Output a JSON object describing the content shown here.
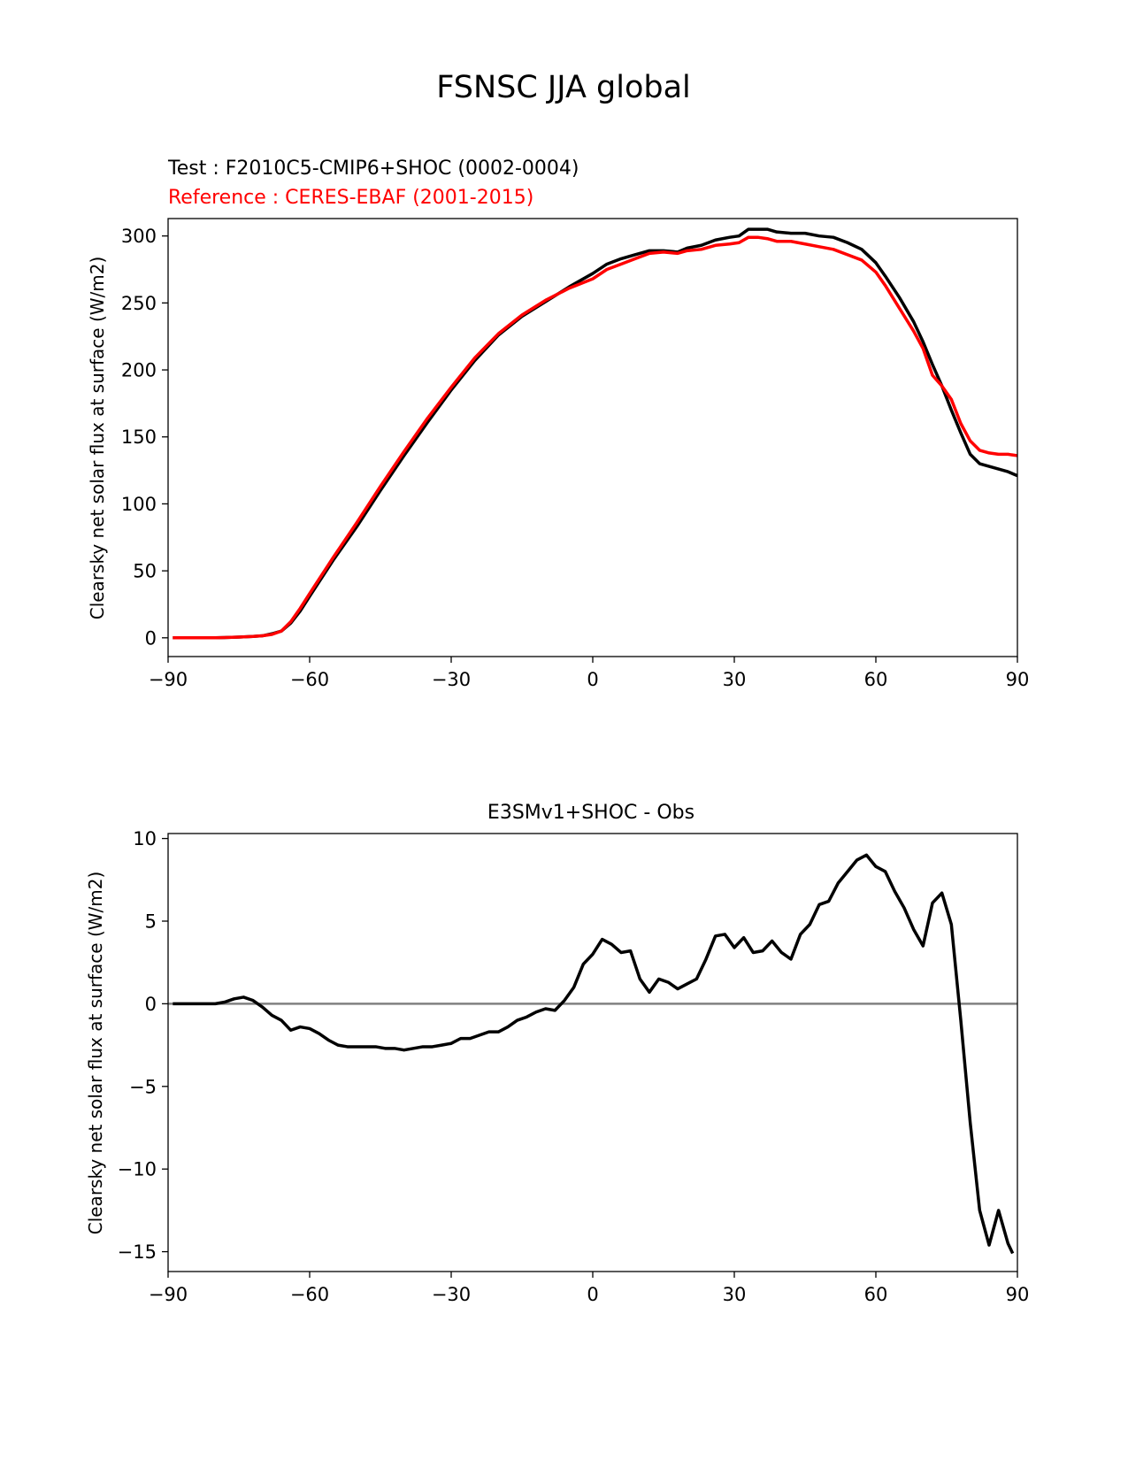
{
  "figure": {
    "title": "FSNSC JJA global"
  },
  "chart_data": [
    {
      "type": "line",
      "subtitle_test": "Test : F2010C5-CMIP6+SHOC (0002-0004)",
      "subtitle_ref": "Reference : CERES-EBAF (2001-2015)",
      "xlabel": "",
      "ylabel": "Clearsky net solar flux at surface (W/m2)",
      "xlim": [
        -90,
        90
      ],
      "ylim": [
        -14,
        313
      ],
      "xticks": [
        -90,
        -60,
        -30,
        0,
        30,
        60,
        90
      ],
      "xtick_labels": [
        "−90",
        "−60",
        "−30",
        "0",
        "30",
        "60",
        "90"
      ],
      "yticks": [
        0,
        50,
        100,
        150,
        200,
        250,
        300
      ],
      "ytick_labels": [
        "0",
        "50",
        "100",
        "150",
        "200",
        "250",
        "300"
      ],
      "grid": false,
      "series": [
        {
          "color": "#000000",
          "x": [
            -89,
            -80,
            -75,
            -72,
            -70,
            -68,
            -66,
            -64,
            -62,
            -60,
            -55,
            -50,
            -45,
            -40,
            -35,
            -30,
            -25,
            -20,
            -15,
            -10,
            -5,
            0,
            3,
            6,
            9,
            12,
            15,
            18,
            20,
            23,
            26,
            29,
            31,
            33,
            35,
            37,
            39,
            42,
            45,
            48,
            51,
            54,
            57,
            60,
            62,
            65,
            68,
            70,
            72,
            74,
            76,
            78,
            80,
            82,
            84,
            86,
            88,
            90
          ],
          "y": [
            0,
            0,
            0.5,
            1,
            1.5,
            3,
            5,
            11,
            20,
            31,
            58,
            83,
            110,
            136,
            161,
            185,
            207,
            226,
            240,
            251,
            262,
            272,
            279,
            283,
            286,
            289,
            289,
            288,
            291,
            293,
            297,
            299,
            300,
            305,
            305,
            305,
            303,
            302,
            302,
            300,
            299,
            295,
            290,
            280,
            270,
            254,
            236,
            221,
            204,
            188,
            170,
            153,
            137,
            130,
            128,
            126,
            124,
            121
          ]
        },
        {
          "color": "#ff0000",
          "x": [
            -89,
            -80,
            -75,
            -72,
            -70,
            -68,
            -66,
            -64,
            -62,
            -60,
            -55,
            -50,
            -45,
            -40,
            -35,
            -30,
            -25,
            -20,
            -15,
            -10,
            -5,
            0,
            3,
            6,
            9,
            12,
            15,
            18,
            20,
            23,
            26,
            29,
            31,
            33,
            35,
            37,
            39,
            42,
            45,
            48,
            51,
            54,
            57,
            60,
            62,
            65,
            68,
            70,
            72,
            74,
            76,
            78,
            80,
            82,
            84,
            86,
            88,
            90
          ],
          "y": [
            0,
            0,
            0.5,
            1,
            1.5,
            2.5,
            5,
            12,
            22,
            33,
            60,
            86,
            113,
            139,
            164,
            187,
            209,
            227,
            241,
            252,
            261,
            268,
            275,
            279,
            283,
            287,
            288,
            287,
            289,
            290,
            293,
            294,
            295,
            299,
            299,
            298,
            296,
            296,
            294,
            292,
            290,
            286,
            282,
            273,
            263,
            246,
            229,
            216,
            196,
            188,
            178,
            160,
            147,
            140,
            138,
            137,
            137,
            136
          ]
        }
      ]
    },
    {
      "type": "line",
      "title": "E3SMv1+SHOC - Obs",
      "xlabel": "",
      "ylabel": "Clearsky net solar flux at surface (W/m2)",
      "xlim": [
        -90,
        90
      ],
      "ylim": [
        -16.2,
        10.3
      ],
      "xticks": [
        -90,
        -60,
        -30,
        0,
        30,
        60,
        90
      ],
      "xtick_labels": [
        "−90",
        "−60",
        "−30",
        "0",
        "30",
        "60",
        "90"
      ],
      "yticks": [
        -15,
        -10,
        -5,
        0,
        5,
        10
      ],
      "ytick_labels": [
        "−15",
        "−10",
        "−5",
        "0",
        "5",
        "10"
      ],
      "grid": false,
      "zero_line_color": "#808080",
      "series": [
        {
          "color": "#000000",
          "x": [
            -89,
            -80,
            -78,
            -76,
            -74,
            -72,
            -70,
            -68,
            -66,
            -64,
            -62,
            -60,
            -58,
            -56,
            -54,
            -52,
            -50,
            -48,
            -46,
            -44,
            -42,
            -40,
            -38,
            -36,
            -34,
            -32,
            -30,
            -28,
            -26,
            -24,
            -22,
            -20,
            -18,
            -16,
            -14,
            -12,
            -10,
            -8,
            -6,
            -4,
            -2,
            0,
            2,
            4,
            6,
            8,
            10,
            12,
            14,
            16,
            18,
            20,
            22,
            24,
            26,
            28,
            30,
            32,
            34,
            36,
            38,
            40,
            42,
            44,
            46,
            48,
            50,
            52,
            54,
            56,
            58,
            60,
            62,
            64,
            66,
            68,
            70,
            72,
            74,
            76,
            78,
            80,
            82,
            84,
            86,
            88,
            89
          ],
          "y": [
            0,
            0,
            0.1,
            0.3,
            0.4,
            0.2,
            -0.2,
            -0.7,
            -1.0,
            -1.6,
            -1.4,
            -1.5,
            -1.8,
            -2.2,
            -2.5,
            -2.6,
            -2.6,
            -2.6,
            -2.6,
            -2.7,
            -2.7,
            -2.8,
            -2.7,
            -2.6,
            -2.6,
            -2.5,
            -2.4,
            -2.1,
            -2.1,
            -1.9,
            -1.7,
            -1.7,
            -1.4,
            -1.0,
            -0.8,
            -0.5,
            -0.3,
            -0.4,
            0.2,
            1.0,
            2.4,
            3.0,
            3.9,
            3.6,
            3.1,
            3.2,
            1.5,
            0.7,
            1.5,
            1.3,
            0.9,
            1.2,
            1.5,
            2.7,
            4.1,
            4.2,
            3.4,
            4.0,
            3.1,
            3.2,
            3.8,
            3.1,
            2.7,
            4.2,
            4.8,
            6.0,
            6.2,
            7.3,
            8.0,
            8.7,
            9.0,
            8.3,
            8.0,
            6.8,
            5.8,
            4.5,
            3.5,
            6.1,
            6.7,
            4.8,
            -1.0,
            -7.2,
            -12.5,
            -14.6,
            -12.5,
            -14.5,
            -15.1
          ]
        }
      ]
    }
  ]
}
